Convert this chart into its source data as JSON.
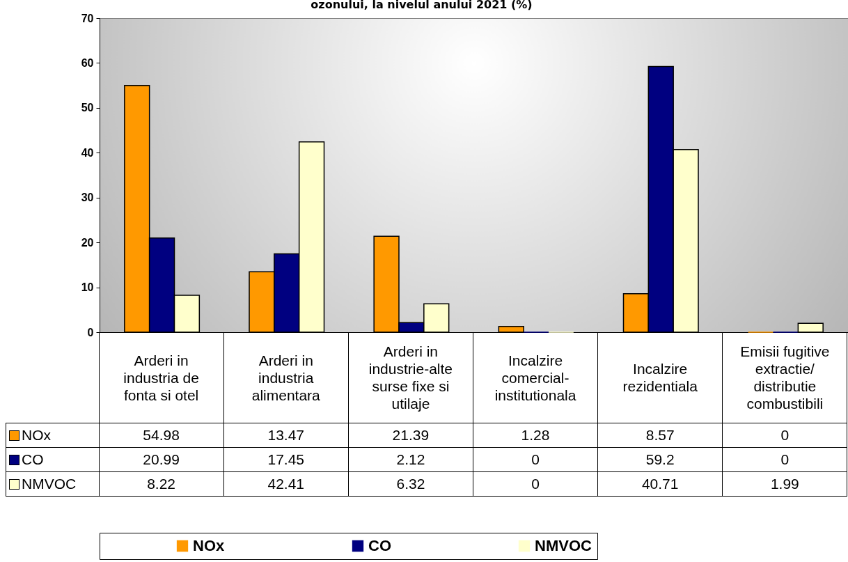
{
  "chart_data": {
    "type": "bar",
    "title": "ozonului, la nivelul anului 2021 (%)",
    "categories": [
      "Arderi in industria de fonta si otel",
      "Arderi in industria alimentara",
      "Arderi in industrie-alte surse fixe si utilaje",
      "Incalzire comercial-institutionala",
      "Incalzire rezidentiala",
      "Emisii fugitive extractie/ distributie combustibili"
    ],
    "series": [
      {
        "name": "NOx",
        "color": "#ff9900",
        "values": [
          54.98,
          13.47,
          21.39,
          1.28,
          8.57,
          0
        ]
      },
      {
        "name": "CO",
        "color": "#000080",
        "values": [
          20.99,
          17.45,
          2.12,
          0,
          59.2,
          0
        ]
      },
      {
        "name": "NMVOC",
        "color": "#ffffcc",
        "values": [
          8.22,
          42.41,
          6.32,
          0,
          40.71,
          1.99
        ]
      }
    ],
    "ylim": [
      0,
      70
    ],
    "yticks": [
      0,
      10,
      20,
      30,
      40,
      50,
      60,
      70
    ],
    "data_labels": true,
    "legend": "bottom"
  }
}
